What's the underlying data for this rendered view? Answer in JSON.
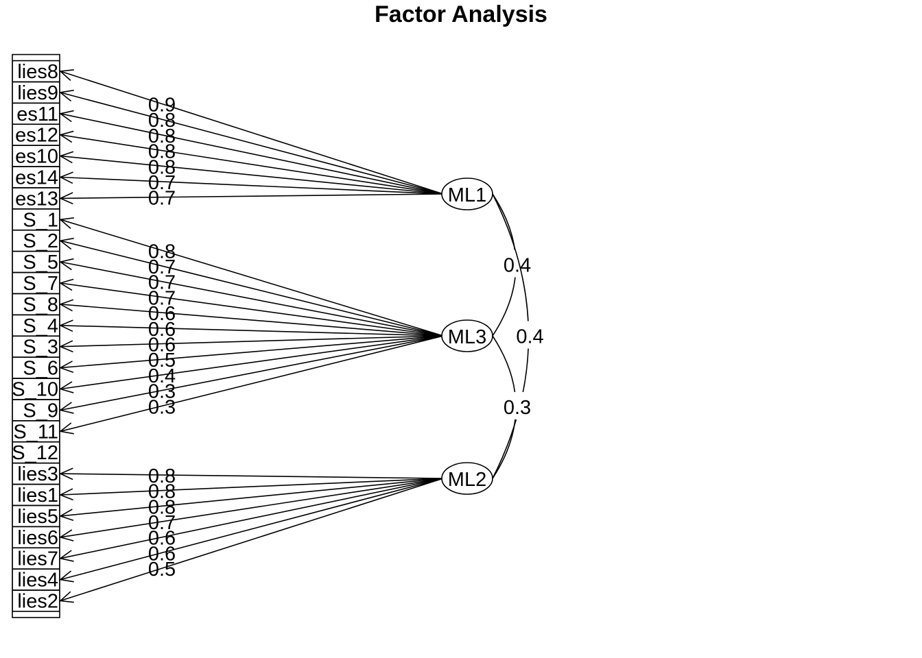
{
  "title": "Factor Analysis",
  "variables": [
    {
      "label": "lies8",
      "factor": "ML1",
      "loading": "0.9"
    },
    {
      "label": "lies9",
      "factor": "ML1",
      "loading": "0.8"
    },
    {
      "label": "es11",
      "factor": "ML1",
      "loading": "0.8"
    },
    {
      "label": "es12",
      "factor": "ML1",
      "loading": "0.8"
    },
    {
      "label": "es10",
      "factor": "ML1",
      "loading": "0.8"
    },
    {
      "label": "es14",
      "factor": "ML1",
      "loading": "0.7"
    },
    {
      "label": "es13",
      "factor": "ML1",
      "loading": "0.7"
    },
    {
      "label": "S_1",
      "factor": "ML3",
      "loading": "0.8"
    },
    {
      "label": "S_2",
      "factor": "ML3",
      "loading": "0.7"
    },
    {
      "label": "S_5",
      "factor": "ML3",
      "loading": "0.7"
    },
    {
      "label": "S_7",
      "factor": "ML3",
      "loading": "0.7"
    },
    {
      "label": "S_8",
      "factor": "ML3",
      "loading": "0.6"
    },
    {
      "label": "S_4",
      "factor": "ML3",
      "loading": "0.6"
    },
    {
      "label": "S_3",
      "factor": "ML3",
      "loading": "0.6"
    },
    {
      "label": "S_6",
      "factor": "ML3",
      "loading": "0.5"
    },
    {
      "label": "S_10",
      "factor": "ML3",
      "loading": "0.4"
    },
    {
      "label": "S_9",
      "factor": "ML3",
      "loading": "0.3"
    },
    {
      "label": "S_11",
      "factor": "ML3",
      "loading": "0.3"
    },
    {
      "label": "S_12",
      "factor": null,
      "loading": null
    },
    {
      "label": "lies3",
      "factor": "ML2",
      "loading": "0.8"
    },
    {
      "label": "lies1",
      "factor": "ML2",
      "loading": "0.8"
    },
    {
      "label": "lies5",
      "factor": "ML2",
      "loading": "0.8"
    },
    {
      "label": "lies6",
      "factor": "ML2",
      "loading": "0.7"
    },
    {
      "label": "lies7",
      "factor": "ML2",
      "loading": "0.6"
    },
    {
      "label": "lies4",
      "factor": "ML2",
      "loading": "0.6"
    },
    {
      "label": "lies2",
      "factor": "ML2",
      "loading": "0.5"
    }
  ],
  "factors": [
    {
      "name": "ML1"
    },
    {
      "name": "ML3"
    },
    {
      "name": "ML2"
    }
  ],
  "correlations": [
    {
      "from": "ML1",
      "to": "ML3",
      "value": "0.4"
    },
    {
      "from": "ML1",
      "to": "ML2",
      "value": "0.4"
    },
    {
      "from": "ML3",
      "to": "ML2",
      "value": "0.3"
    }
  ]
}
